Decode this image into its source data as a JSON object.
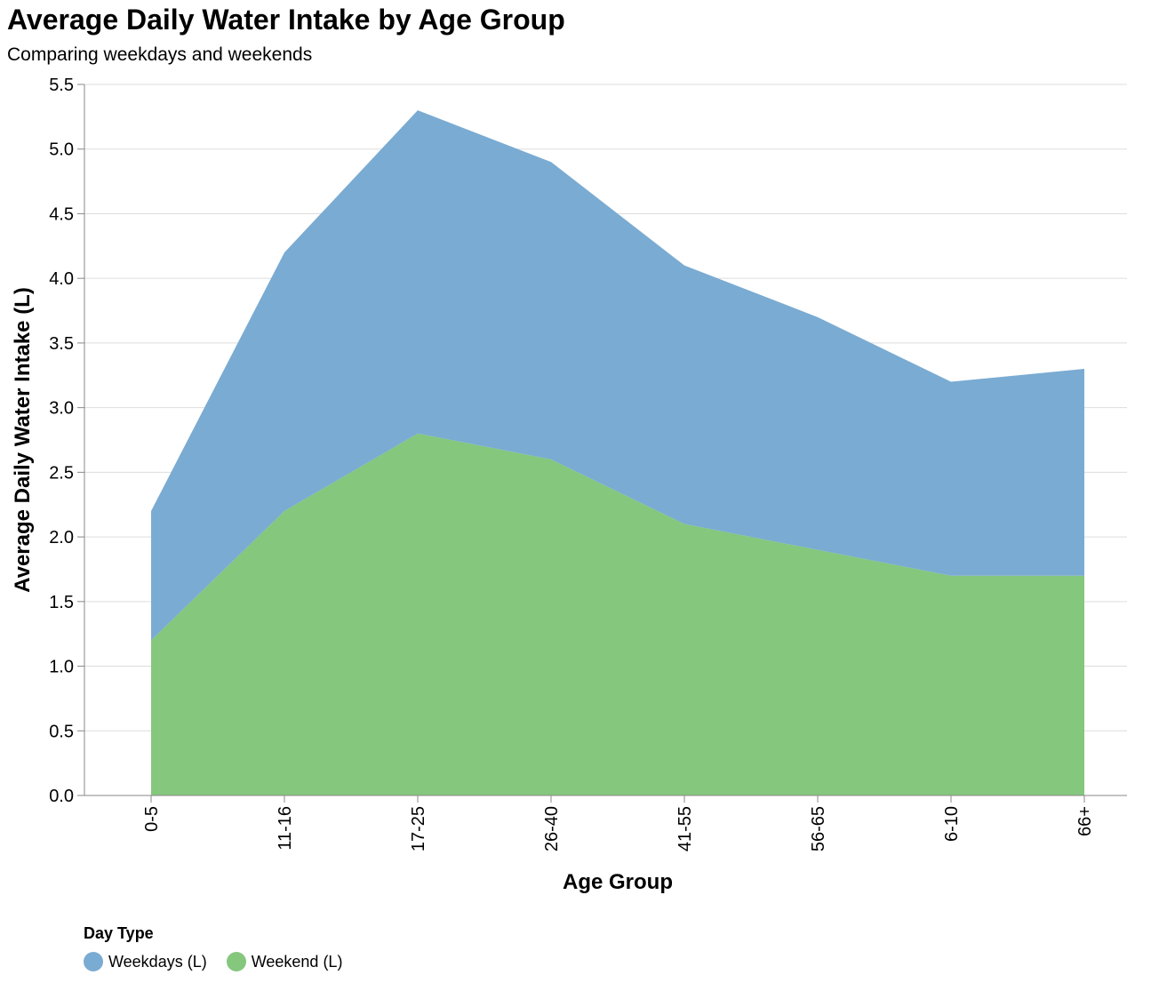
{
  "chart_data": {
    "type": "area",
    "title": "Average Daily Water Intake by Age Group",
    "subtitle": "Comparing weekdays and weekends",
    "xlabel": "Age Group",
    "ylabel": "Average Daily Water Intake (L)",
    "categories": [
      "0-5",
      "11-16",
      "17-25",
      "26-40",
      "41-55",
      "56-65",
      "6-10",
      "66+"
    ],
    "ylim": [
      0,
      5.5
    ],
    "yticks": [
      "0.0",
      "0.5",
      "1.0",
      "1.5",
      "2.0",
      "2.5",
      "3.0",
      "3.5",
      "4.0",
      "4.5",
      "5.0",
      "5.5"
    ],
    "stacked": true,
    "grid": true,
    "series": [
      {
        "name": "Weekend (L)",
        "color": "#84c77d",
        "values": [
          1.2,
          2.2,
          2.8,
          2.6,
          2.1,
          1.9,
          1.7,
          1.7
        ]
      },
      {
        "name": "Weekdays (L)",
        "color": "#7aabd2",
        "values": [
          1.0,
          2.0,
          2.5,
          2.3,
          2.0,
          1.8,
          1.5,
          1.6
        ]
      }
    ],
    "legend": {
      "title": "Day Type",
      "position": "bottom-left",
      "items": [
        {
          "label": "Weekdays (L)",
          "color": "#7aabd2"
        },
        {
          "label": "Weekend (L)",
          "color": "#84c77d"
        }
      ]
    }
  }
}
